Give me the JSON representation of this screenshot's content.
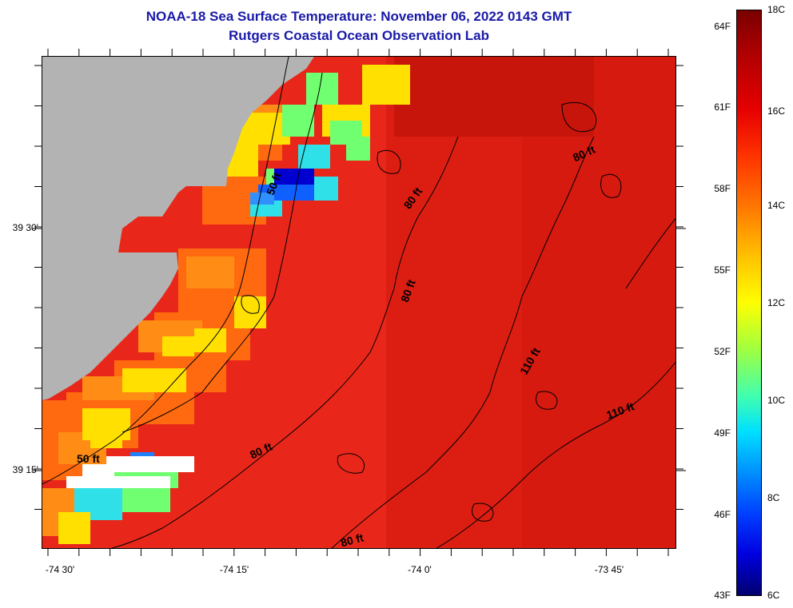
{
  "title": {
    "line1": "NOAA-18 Sea Surface Temperature:  November 06, 2022 0143 GMT",
    "line2": "Rutgers Coastal Ocean Observation Lab"
  },
  "colors": {
    "land": "#b3b3b3",
    "water_base": "#e8271a",
    "title": "#1a1aa8",
    "no_data": "#ffffff"
  },
  "map": {
    "lat_labels": [
      "39 30'",
      "39 15'"
    ],
    "lon_labels": [
      "-74 30'",
      "-74 15'",
      "-74 0'",
      "-73 45'"
    ],
    "contour_labels": [
      {
        "text": "50 ft",
        "angle": -70
      },
      {
        "text": "80 ft",
        "angle": -55
      },
      {
        "text": "80 ft",
        "angle": -70
      },
      {
        "text": "80 ft",
        "angle": -25
      },
      {
        "text": "110 ft",
        "angle": -60
      },
      {
        "text": "110 ft",
        "angle": -20
      },
      {
        "text": "50 ft",
        "angle": 0
      },
      {
        "text": "80 ft",
        "angle": -25
      },
      {
        "text": "80 ft",
        "angle": -15
      }
    ]
  },
  "colorbar": {
    "celsius_labels": [
      "18C",
      "16C",
      "14C",
      "12C",
      "10C",
      "8C",
      "6C"
    ],
    "fahrenheit_labels": [
      "64F",
      "61F",
      "58F",
      "55F",
      "52F",
      "49F",
      "46F",
      "43F"
    ]
  }
}
